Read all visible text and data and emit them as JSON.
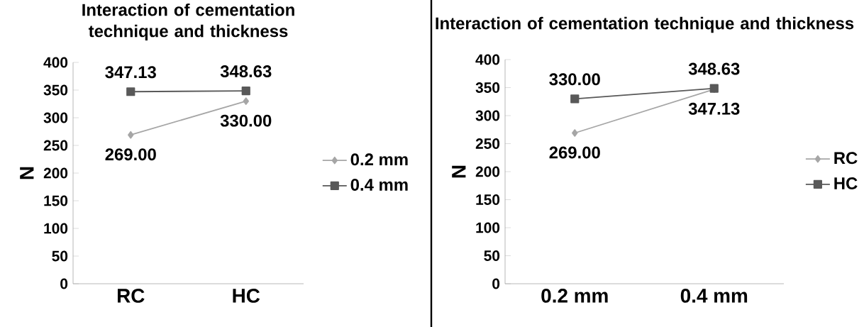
{
  "chart_data": [
    {
      "type": "line",
      "title": "Interaction of cementation technique and thickness",
      "ylabel": "N",
      "categories": [
        "RC",
        "HC"
      ],
      "series": [
        {
          "name": "0.2 mm",
          "color": "#a6a6a6",
          "marker": "diamond",
          "values": [
            269,
            330
          ],
          "value_labels": [
            "269.00",
            "330.00"
          ]
        },
        {
          "name": "0.4 mm",
          "color": "#595959",
          "marker": "square",
          "values": [
            347.13,
            348.63
          ],
          "value_labels": [
            "347.13",
            "348.63"
          ]
        }
      ],
      "ylim": [
        0,
        400
      ],
      "yticks": [
        0,
        50,
        100,
        150,
        200,
        250,
        300,
        350,
        400
      ],
      "legend": "right"
    },
    {
      "type": "line",
      "title": "Interaction of cementation technique and thickness",
      "ylabel": "N",
      "categories": [
        "0.2 mm",
        "0.4 mm"
      ],
      "series": [
        {
          "name": "RC",
          "color": "#a6a6a6",
          "marker": "diamond",
          "values": [
            269,
            347.13
          ],
          "value_labels": [
            "269.00",
            "347.13"
          ]
        },
        {
          "name": "HC",
          "color": "#595959",
          "marker": "square",
          "values": [
            330,
            348.63
          ],
          "value_labels": [
            "330.00",
            "348.63"
          ]
        }
      ],
      "ylim": [
        0,
        400
      ],
      "yticks": [
        0,
        50,
        100,
        150,
        200,
        250,
        300,
        350,
        400
      ],
      "legend": "right"
    }
  ]
}
